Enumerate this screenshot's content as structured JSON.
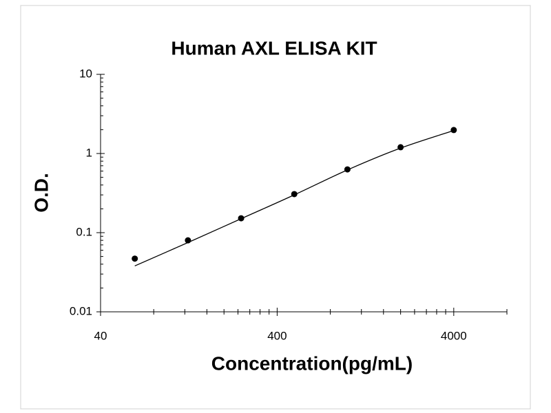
{
  "chart_data": {
    "type": "scatter",
    "title": "Human AXL ELISA KIT",
    "x_label": "Concentration(pg/mL)",
    "y_label": "O.D.",
    "x_scale": "log",
    "y_scale": "log",
    "x": [
      62.5,
      125,
      250,
      500,
      1000,
      2000,
      4000
    ],
    "values": [
      0.047,
      0.08,
      0.152,
      0.307,
      0.63,
      1.2,
      1.98
    ],
    "color": "#000000",
    "curve": {
      "x": [
        62.5,
        125,
        250,
        500,
        1000,
        2000,
        4000
      ],
      "values": [
        0.038,
        0.075,
        0.15,
        0.3,
        0.62,
        1.17,
        1.95
      ],
      "color": "#000000"
    },
    "xlim": [
      40,
      8000
    ],
    "xticks": [
      40,
      400,
      4000
    ],
    "xminorticks": [
      80,
      120,
      160,
      200,
      240,
      280,
      320,
      360,
      800,
      1200,
      1600,
      2000,
      2400,
      2800,
      3200,
      3600,
      8000
    ],
    "ylim": [
      0.01,
      10
    ],
    "yticks": [
      0.01,
      0.1,
      1,
      10
    ],
    "yminorticks": [
      0.02,
      0.03,
      0.04,
      0.05,
      0.06,
      0.07,
      0.08,
      0.09,
      0.2,
      0.3,
      0.4,
      0.5,
      0.6,
      0.7,
      0.8,
      0.9,
      2,
      3,
      4,
      5,
      6,
      7,
      8,
      9
    ]
  }
}
